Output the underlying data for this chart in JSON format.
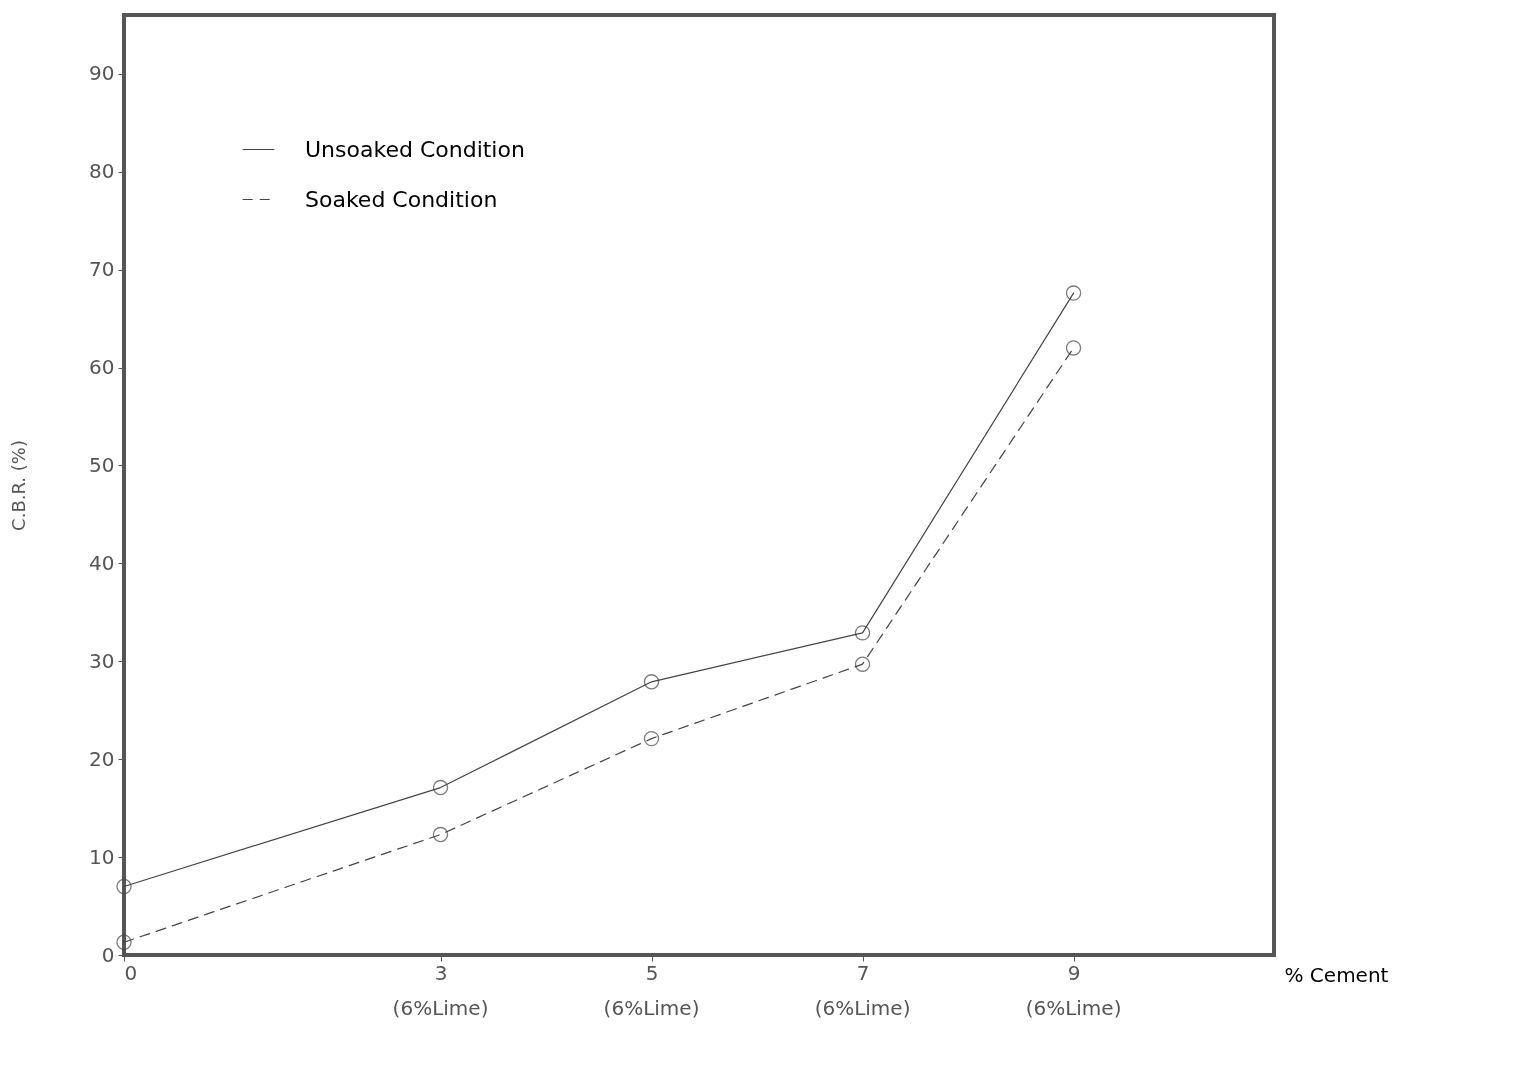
{
  "chart_data": {
    "type": "line",
    "xlabel": "% Cement",
    "ylabel": "C.B.R. (%)",
    "x": [
      0,
      3,
      5,
      7,
      9
    ],
    "xlim": [
      0,
      10.9
    ],
    "xticks": [
      0,
      3,
      5,
      7,
      9
    ],
    "annotations": [
      "(6%Lime)",
      "(6%Lime)",
      "(6%Lime)",
      "(6%Lime)"
    ],
    "ylim": [
      0,
      96
    ],
    "yticks": [
      0,
      10,
      20,
      30,
      40,
      50,
      60,
      70,
      80,
      90
    ],
    "series": [
      {
        "name": "Unsoaked Condition",
        "color": "#444444",
        "line_style": "solid",
        "values": [
          7,
          17.1,
          27.9,
          32.9,
          67.6
        ]
      },
      {
        "name": "Soaked Condition",
        "color": "#444444",
        "line_style": "dashed",
        "values": [
          1.3,
          12.3,
          22.1,
          29.7,
          62.0
        ]
      }
    ],
    "marker": "circle",
    "grid": false,
    "legend": "top left"
  }
}
